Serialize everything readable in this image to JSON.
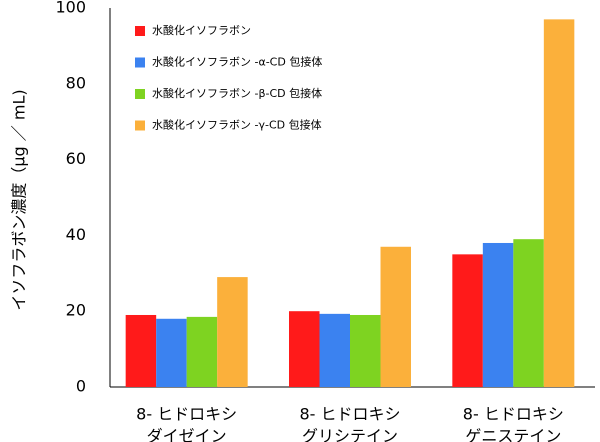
{
  "chart_data": {
    "type": "bar",
    "y_label": "イソフラボン濃度（μg ／ mL)",
    "categories": [
      [
        "8- ヒドロキシ",
        "ダイゼイン"
      ],
      [
        "8- ヒドロキシ",
        "グリシテイン"
      ],
      [
        "8- ヒドロキシ",
        "ゲニステイン"
      ]
    ],
    "series": [
      {
        "name": "水酸化イソフラボン",
        "color": "#ff1a1a",
        "values": [
          19,
          20,
          35
        ]
      },
      {
        "name": "水酸化イソフラボン -α-CD 包接体",
        "color": "#3b82f0",
        "values": [
          18,
          19.3,
          38
        ]
      },
      {
        "name": "水酸化イソフラボン -β-CD 包接体",
        "color": "#7ed321",
        "values": [
          18.5,
          19,
          39
        ]
      },
      {
        "name": "水酸化イソフラボン -γ-CD 包接体",
        "color": "#fbb03b",
        "values": [
          29,
          37,
          97
        ]
      }
    ],
    "ylim": [
      0,
      100
    ],
    "yticks": [
      0,
      20,
      40,
      60,
      80,
      100
    ],
    "legend": "upper-left"
  }
}
